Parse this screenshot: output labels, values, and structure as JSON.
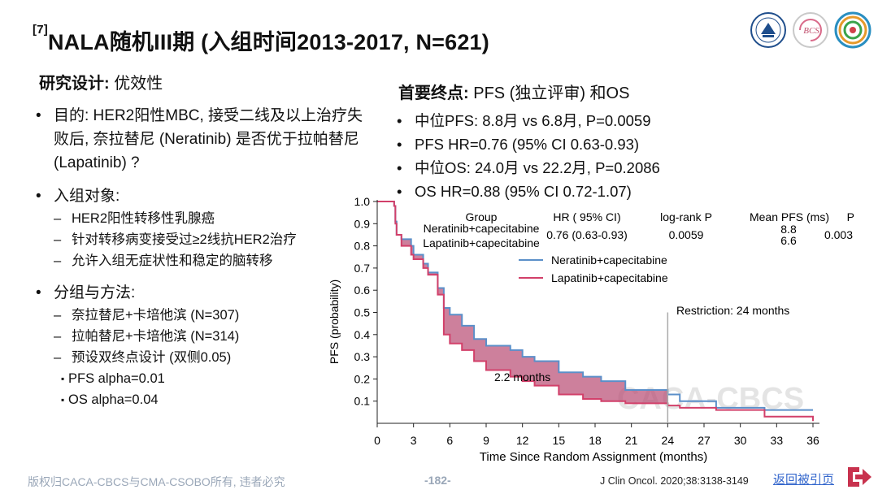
{
  "slide": {
    "title_ref": "[7]",
    "title": "NALA随机III期 (入组时间2013-2017, N=621)"
  },
  "design": {
    "label": "研究设计:",
    "value": " 优效性"
  },
  "objective": {
    "text": "目的: HER2阳性MBC, 接受二线及以上治疗失败后, 奈拉替尼 (Neratinib) 是否优于拉帕替尼 (Lapatinib) ?"
  },
  "enrollment": {
    "heading": "入组对象:",
    "items": [
      "HER2阳性转移性乳腺癌",
      "针对转移病变接受过≥2线抗HER2治疗",
      "允许入组无症状性和稳定的脑转移"
    ]
  },
  "arms": {
    "heading": "分组与方法:",
    "items": [
      "奈拉替尼+卡培他滨 (N=307)",
      "拉帕替尼+卡培他滨 (N=314)",
      "预设双终点设计 (双侧0.05)"
    ],
    "alphas": [
      "PFS alpha=0.01",
      "OS alpha=0.04"
    ]
  },
  "endpoints": {
    "label": "首要终点:",
    "value": " PFS (独立评审) 和OS",
    "items": [
      "中位PFS: 8.8月 vs 6.8月, P=0.0059",
      "PFS HR=0.76 (95% CI 0.63-0.93)",
      "中位OS: 24.0月 vs 22.2月, P=0.2086",
      "OS HR=0.88 (95% CI 0.72-1.07)"
    ]
  },
  "chart_data": {
    "type": "line",
    "xlabel": "Time Since Random Assignment (months)",
    "ylabel": "PFS (probability)",
    "xlim": [
      0,
      36
    ],
    "ylim": [
      0,
      1.0
    ],
    "xticks": [
      0,
      3,
      6,
      9,
      12,
      15,
      18,
      21,
      24,
      27,
      30,
      33,
      36
    ],
    "yticks": [
      0.1,
      0.2,
      0.3,
      0.4,
      0.5,
      0.6,
      0.7,
      0.8,
      0.9,
      1.0
    ],
    "series": [
      {
        "name": "Neratinib+capecitabine",
        "color": "#5b8fc9",
        "points": [
          [
            0,
            1.0
          ],
          [
            1.4,
            0.98
          ],
          [
            1.5,
            0.91
          ],
          [
            1.6,
            0.85
          ],
          [
            2.0,
            0.83
          ],
          [
            2.8,
            0.8
          ],
          [
            3.0,
            0.76
          ],
          [
            3.8,
            0.72
          ],
          [
            4.2,
            0.68
          ],
          [
            5.0,
            0.61
          ],
          [
            5.5,
            0.52
          ],
          [
            6.0,
            0.49
          ],
          [
            7.0,
            0.44
          ],
          [
            8.0,
            0.38
          ],
          [
            9.0,
            0.35
          ],
          [
            11.0,
            0.33
          ],
          [
            12.0,
            0.3
          ],
          [
            13.0,
            0.28
          ],
          [
            15.0,
            0.23
          ],
          [
            17.0,
            0.21
          ],
          [
            18.5,
            0.19
          ],
          [
            20.5,
            0.15
          ],
          [
            24.0,
            0.13
          ],
          [
            25.0,
            0.1
          ],
          [
            28.0,
            0.07
          ],
          [
            32.0,
            0.06
          ],
          [
            36.0,
            0.06
          ]
        ]
      },
      {
        "name": "Lapatinib+capecitabine",
        "color": "#d2406a",
        "points": [
          [
            0,
            1.0
          ],
          [
            1.4,
            0.98
          ],
          [
            1.5,
            0.9
          ],
          [
            1.6,
            0.85
          ],
          [
            2.0,
            0.8
          ],
          [
            2.8,
            0.76
          ],
          [
            3.0,
            0.74
          ],
          [
            3.8,
            0.7
          ],
          [
            4.2,
            0.67
          ],
          [
            5.0,
            0.58
          ],
          [
            5.5,
            0.4
          ],
          [
            6.0,
            0.36
          ],
          [
            7.0,
            0.33
          ],
          [
            8.0,
            0.28
          ],
          [
            9.0,
            0.24
          ],
          [
            11.0,
            0.21
          ],
          [
            12.0,
            0.19
          ],
          [
            13.0,
            0.17
          ],
          [
            15.0,
            0.13
          ],
          [
            17.0,
            0.11
          ],
          [
            18.5,
            0.1
          ],
          [
            20.5,
            0.09
          ],
          [
            24.0,
            0.08
          ],
          [
            25.0,
            0.07
          ],
          [
            28.0,
            0.06
          ],
          [
            32.0,
            0.03
          ],
          [
            36.0,
            0.01
          ]
        ]
      }
    ],
    "table": {
      "headers": [
        "Group",
        "HR ( 95% CI)",
        "log-rank P",
        "Mean PFS (ms)",
        "P"
      ],
      "groups": [
        "Neratinib+capecitabine",
        "Lapatinib+capecitabine"
      ],
      "hr": "0.76 (0.63-0.93)",
      "logrank_p": "0.0059",
      "mean_pfs": [
        "8.8",
        "6.6"
      ],
      "p": "0.003"
    },
    "restriction_label": "Restriction: 24 months",
    "restriction_x": 24,
    "difference_label": "2.2 months",
    "watermark": "CACA-CBCS"
  },
  "footer": {
    "copyright": "版权归CACA-CBCS与CMA-CSOBO所有, 违者必究",
    "page": "-182-",
    "citation": "J Clin Oncol. 2020;38:3138-3149",
    "back_link": "返回被引页"
  },
  "logos": {
    "bcs_text": "BCS"
  }
}
